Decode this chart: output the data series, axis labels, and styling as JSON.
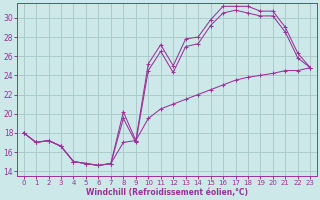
{
  "xlabel": "Windchill (Refroidissement éolien,°C)",
  "bg_color": "#cce8e8",
  "grid_color": "#aacccc",
  "line_color": "#993399",
  "xlim": [
    -0.5,
    23.5
  ],
  "ylim": [
    13.5,
    31.5
  ],
  "xticks": [
    0,
    1,
    2,
    3,
    4,
    5,
    6,
    7,
    8,
    9,
    10,
    11,
    12,
    13,
    14,
    15,
    16,
    17,
    18,
    19,
    20,
    21,
    22,
    23
  ],
  "yticks": [
    14,
    16,
    18,
    20,
    22,
    24,
    26,
    28,
    30
  ],
  "line1_x": [
    0,
    1,
    2,
    3,
    4,
    5,
    6,
    7,
    8,
    9,
    10,
    11,
    12,
    13,
    14,
    15,
    16,
    17,
    18,
    19,
    20,
    21,
    22,
    23
  ],
  "line1_y": [
    18.0,
    17.0,
    17.2,
    16.6,
    15.0,
    14.8,
    14.6,
    14.8,
    20.2,
    17.2,
    25.2,
    27.2,
    25.0,
    27.8,
    28.0,
    29.8,
    31.2,
    31.2,
    31.2,
    30.7,
    30.7,
    29.0,
    26.3,
    24.8
  ],
  "line2_x": [
    0,
    1,
    2,
    3,
    4,
    5,
    6,
    7,
    8,
    9,
    10,
    11,
    12,
    13,
    14,
    15,
    16,
    17,
    18,
    19,
    20,
    21,
    22,
    23
  ],
  "line2_y": [
    18.0,
    17.0,
    17.2,
    16.6,
    15.0,
    14.8,
    14.6,
    14.8,
    19.5,
    17.0,
    24.5,
    26.5,
    24.3,
    27.0,
    27.3,
    29.2,
    30.5,
    30.8,
    30.5,
    30.2,
    30.2,
    28.5,
    25.8,
    24.8
  ],
  "line3_x": [
    0,
    1,
    2,
    3,
    4,
    5,
    6,
    7,
    8,
    9,
    10,
    11,
    12,
    13,
    14,
    15,
    16,
    17,
    18,
    19,
    20,
    21,
    22,
    23
  ],
  "line3_y": [
    18.0,
    17.0,
    17.2,
    16.6,
    15.0,
    14.8,
    14.6,
    14.8,
    17.0,
    17.2,
    19.5,
    20.5,
    21.0,
    21.5,
    22.0,
    22.5,
    23.0,
    23.5,
    23.8,
    24.0,
    24.2,
    24.5,
    24.5,
    24.8
  ]
}
